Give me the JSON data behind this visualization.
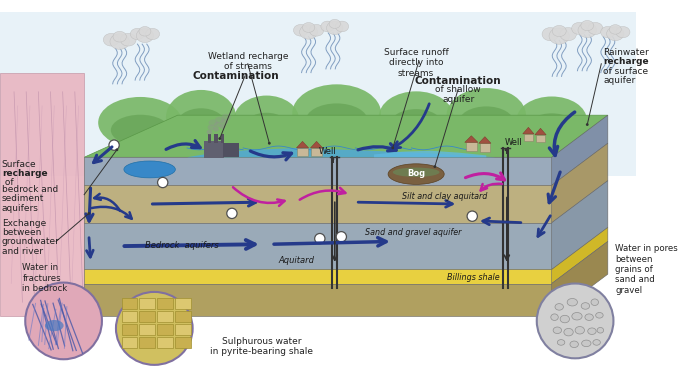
{
  "bg": "#ffffff",
  "sky_color": "#cde4f0",
  "green_hill": "#7ab868",
  "green_dark": "#5a9848",
  "pink_wall": "#e8b4c0",
  "grey_layer1": "#9aaabb",
  "grey_layer2": "#8a9aab",
  "sand_color": "#c8b878",
  "yellow_shale": "#e8d040",
  "brown_base": "#b0a060",
  "river_blue": "#50a8d8",
  "pond_blue": "#3888c8",
  "arrow_blue": "#253a8a",
  "arrow_magenta": "#c020a0",
  "dark_line": "#303030",
  "text_dark": "#222222",
  "cloud_gray": "#d5d5d5",
  "rain_blue": "#7090b8",
  "factory_dark": "#555565",
  "circle_pink": "#e0a8b8",
  "circle_yellow": "#d8c860",
  "circle_gray": "#c8c8c8",
  "bog_brown": "#7a6040",
  "labels": {
    "surface_recharge_1": "Surface",
    "surface_recharge_2": "recharge",
    "surface_recharge_3": " of",
    "surface_recharge_4": "bedrock and",
    "surface_recharge_5": "sediment",
    "surface_recharge_6": "aquifers",
    "exchange_1": "Exchange",
    "exchange_2": "between",
    "exchange_3": "groundwater",
    "exchange_4": "and river",
    "wetland": "Wetland recharge\nof streams",
    "contam1": "Contamination",
    "surface_runoff": "Surface runoff\ndirectly into\nstreams",
    "contam2_1": "Contamination",
    "contam2_2": "of shallow",
    "contam2_3": "aquifer",
    "rainwater_1": "Rainwater",
    "rainwater_2": "recharge",
    "rainwater_3": "of surface",
    "rainwater_4": "aquifer",
    "bedrock": "Bedrock  aquifers",
    "aquitard": "Aquitard",
    "sand_gravel": "Sand and gravel aquifer",
    "silt_clay": "Silt and clay aquitard",
    "billings": "Billings shale",
    "well1": "Well",
    "well2": "Well",
    "bog": "Bog",
    "sulphurous": "Sulphurous water\nin pyrite-bearing shale",
    "water_frac": "Water in\nfractures\nin bedrock",
    "water_pores": "Water in pores\nbetween\ngrains of\nsand and\ngravel"
  }
}
